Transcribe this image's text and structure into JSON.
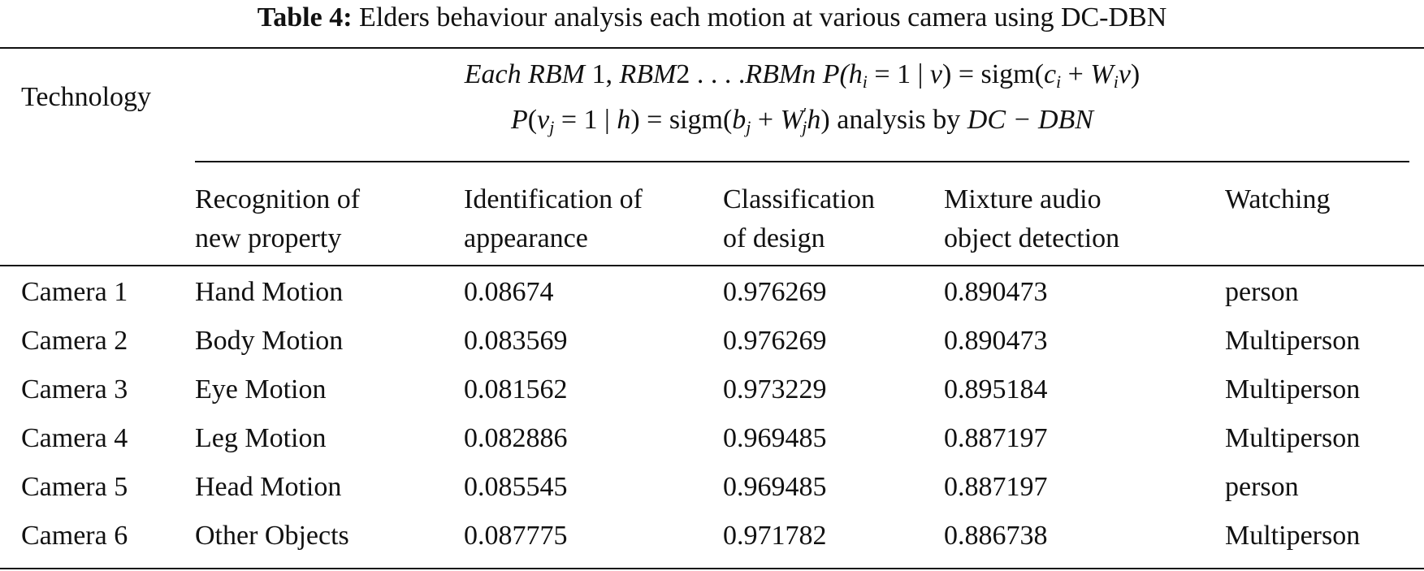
{
  "caption": {
    "label": "Table 4:",
    "text": "Elders behaviour analysis each motion at various camera using DC-DBN"
  },
  "header": {
    "technology": "Technology",
    "formula_line1": {
      "a": "Each RBM",
      "b": " 1, ",
      "c": "RBM",
      "d": "2 . . . .",
      "e": "RBMn P",
      "f": "(h",
      "f_sub": "i",
      "g": " = 1 | ",
      "h": "v",
      "i": ") = sigm(",
      "j": "c",
      "j_sub": "i",
      "k": " + ",
      "l": "W",
      "l_sub": "i",
      "m": "v",
      "n": ")"
    },
    "formula_line2": {
      "a": "P",
      "b": "(",
      "c": "v",
      "c_sub": "j",
      "d": " = 1 | ",
      "e": "h",
      "f": ") = sigm(",
      "g": "b",
      "g_sub": "j",
      "h": " + ",
      "i": "W",
      "i_sup": "′",
      "i_sub": "j",
      "j": "h",
      "k": ") analysis by ",
      "l": "DC − DBN"
    },
    "columns": [
      "Recognition of new property",
      "Identification of appearance",
      "Classification of design",
      "Mixture audio object detection",
      "Watching"
    ],
    "columns_line1": [
      "Recognition of",
      "Identification of",
      "Classification",
      "Mixture audio",
      "Watching"
    ],
    "columns_line2": [
      "new property",
      "appearance",
      "of design",
      "object detection",
      ""
    ]
  },
  "rows": [
    {
      "camera": "Camera 1",
      "motion": "Hand Motion",
      "identification": "0.08674",
      "classification": "0.976269",
      "mixture": "0.890473",
      "watching": "person"
    },
    {
      "camera": "Camera 2",
      "motion": "Body Motion",
      "identification": "0.083569",
      "classification": "0.976269",
      "mixture": "0.890473",
      "watching": "Multiperson"
    },
    {
      "camera": "Camera 3",
      "motion": "Eye Motion",
      "identification": "0.081562",
      "classification": "0.973229",
      "mixture": "0.895184",
      "watching": "Multiperson"
    },
    {
      "camera": "Camera 4",
      "motion": "Leg Motion",
      "identification": "0.082886",
      "classification": "0.969485",
      "mixture": "0.887197",
      "watching": "Multiperson"
    },
    {
      "camera": "Camera 5",
      "motion": "Head Motion",
      "identification": "0.085545",
      "classification": "0.969485",
      "mixture": "0.887197",
      "watching": "person"
    },
    {
      "camera": "Camera 6",
      "motion": "Other Objects",
      "identification": "0.087775",
      "classification": "0.971782",
      "mixture": "0.886738",
      "watching": "Multiperson"
    }
  ]
}
